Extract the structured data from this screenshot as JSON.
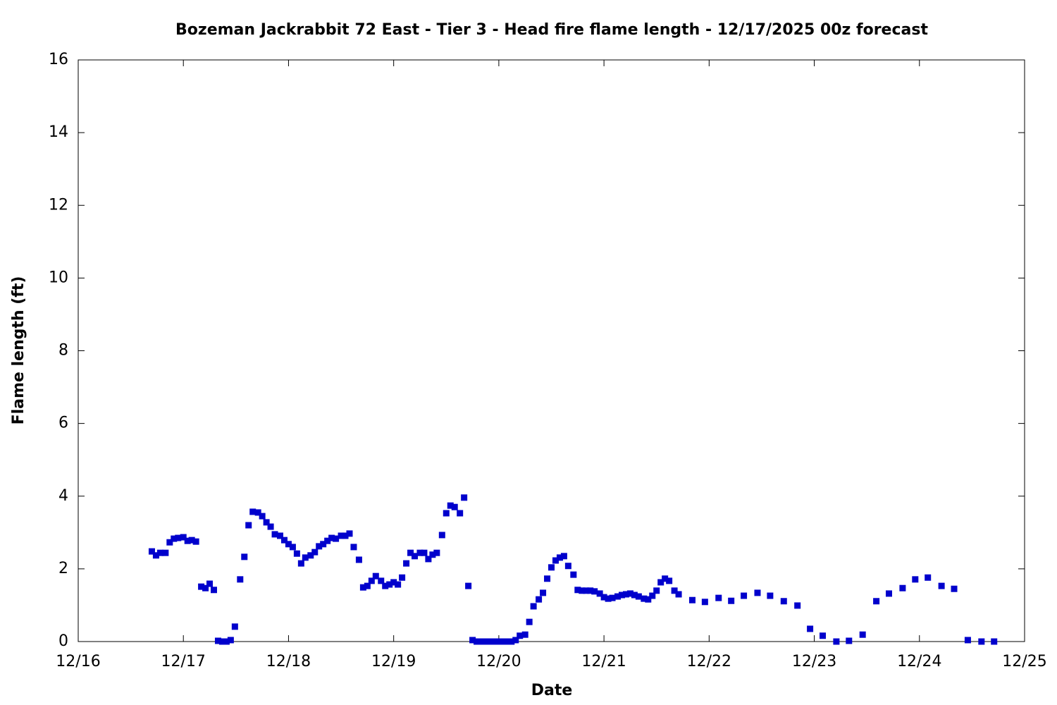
{
  "chart_data": {
    "type": "scatter",
    "title": "Bozeman Jackrabbit 72 East - Tier 3 - Head fire flame length - 12/17/2025 00z forecast",
    "x_label": "Date",
    "y_label": "Flame length (ft)",
    "x": [
      0.7,
      0.74,
      0.78,
      0.83,
      0.87,
      0.91,
      0.95,
      1.0,
      1.04,
      1.08,
      1.12,
      1.17,
      1.21,
      1.25,
      1.29,
      1.33,
      1.37,
      1.41,
      1.45,
      1.49,
      1.54,
      1.58,
      1.62,
      1.66,
      1.71,
      1.75,
      1.79,
      1.83,
      1.87,
      1.92,
      1.96,
      2.0,
      2.04,
      2.08,
      2.12,
      2.16,
      2.21,
      2.25,
      2.29,
      2.33,
      2.37,
      2.41,
      2.45,
      2.5,
      2.54,
      2.58,
      2.62,
      2.67,
      2.71,
      2.75,
      2.79,
      2.83,
      2.88,
      2.92,
      2.96,
      3.0,
      3.04,
      3.08,
      3.12,
      3.16,
      3.2,
      3.25,
      3.29,
      3.33,
      3.37,
      3.41,
      3.46,
      3.5,
      3.54,
      3.58,
      3.63,
      3.67,
      3.71,
      3.75,
      3.79,
      3.83,
      3.87,
      3.91,
      3.96,
      4.0,
      4.04,
      4.08,
      4.12,
      4.16,
      4.2,
      4.25,
      4.29,
      4.33,
      4.38,
      4.42,
      4.46,
      4.5,
      4.54,
      4.58,
      4.62,
      4.66,
      4.71,
      4.75,
      4.79,
      4.83,
      4.87,
      4.91,
      4.96,
      5.0,
      5.04,
      5.08,
      5.13,
      5.17,
      5.21,
      5.25,
      5.29,
      5.33,
      5.38,
      5.42,
      5.46,
      5.5,
      5.54,
      5.58,
      5.62,
      5.67,
      5.71,
      5.84,
      5.96,
      6.09,
      6.21,
      6.33,
      6.46,
      6.58,
      6.71,
      6.84,
      6.96,
      7.08,
      7.21,
      7.33,
      7.46,
      7.59,
      7.71,
      7.84,
      7.96,
      8.08,
      8.21,
      8.33,
      8.46,
      8.59,
      8.71
    ],
    "series": [
      {
        "color": "#0000cc",
        "values": [
          2.48,
          2.37,
          2.44,
          2.44,
          2.73,
          2.83,
          2.85,
          2.87,
          2.77,
          2.79,
          2.75,
          1.51,
          1.47,
          1.59,
          1.42,
          0.02,
          0,
          0,
          0.04,
          0.41,
          1.71,
          2.33,
          3.2,
          3.57,
          3.55,
          3.45,
          3.28,
          3.16,
          2.95,
          2.91,
          2.79,
          2.68,
          2.6,
          2.42,
          2.15,
          2.31,
          2.37,
          2.46,
          2.62,
          2.68,
          2.77,
          2.85,
          2.83,
          2.91,
          2.91,
          2.97,
          2.6,
          2.25,
          1.49,
          1.53,
          1.67,
          1.8,
          1.67,
          1.53,
          1.57,
          1.63,
          1.57,
          1.76,
          2.15,
          2.44,
          2.35,
          2.44,
          2.44,
          2.27,
          2.39,
          2.44,
          2.93,
          3.53,
          3.74,
          3.7,
          3.53,
          3.96,
          1.53,
          0.04,
          0,
          0,
          0,
          0,
          0,
          0,
          0,
          0,
          0,
          0.04,
          0.16,
          0.19,
          0.54,
          0.97,
          1.16,
          1.34,
          1.73,
          2.04,
          2.23,
          2.31,
          2.35,
          2.08,
          1.84,
          1.42,
          1.4,
          1.4,
          1.4,
          1.38,
          1.32,
          1.22,
          1.18,
          1.2,
          1.24,
          1.28,
          1.3,
          1.32,
          1.28,
          1.24,
          1.18,
          1.16,
          1.26,
          1.4,
          1.63,
          1.73,
          1.67,
          1.4,
          1.3,
          1.14,
          1.09,
          1.2,
          1.12,
          1.26,
          1.34,
          1.26,
          1.11,
          0.99,
          0.35,
          0.16,
          0,
          0.02,
          0.19,
          1.11,
          1.32,
          1.47,
          1.71,
          1.76,
          1.53,
          1.45,
          0.04,
          0,
          0
        ]
      }
    ],
    "xlim": [
      0,
      9
    ],
    "xticks": [
      {
        "value": 0,
        "label": "12/16"
      },
      {
        "value": 1,
        "label": "12/17"
      },
      {
        "value": 2,
        "label": "12/18"
      },
      {
        "value": 3,
        "label": "12/19"
      },
      {
        "value": 4,
        "label": "12/20"
      },
      {
        "value": 5,
        "label": "12/21"
      },
      {
        "value": 6,
        "label": "12/22"
      },
      {
        "value": 7,
        "label": "12/23"
      },
      {
        "value": 8,
        "label": "12/24"
      },
      {
        "value": 9,
        "label": "12/25"
      }
    ],
    "ylim": [
      0,
      16
    ],
    "yticks": [
      0,
      2,
      4,
      6,
      8,
      10,
      12,
      14,
      16
    ],
    "grid": false
  }
}
